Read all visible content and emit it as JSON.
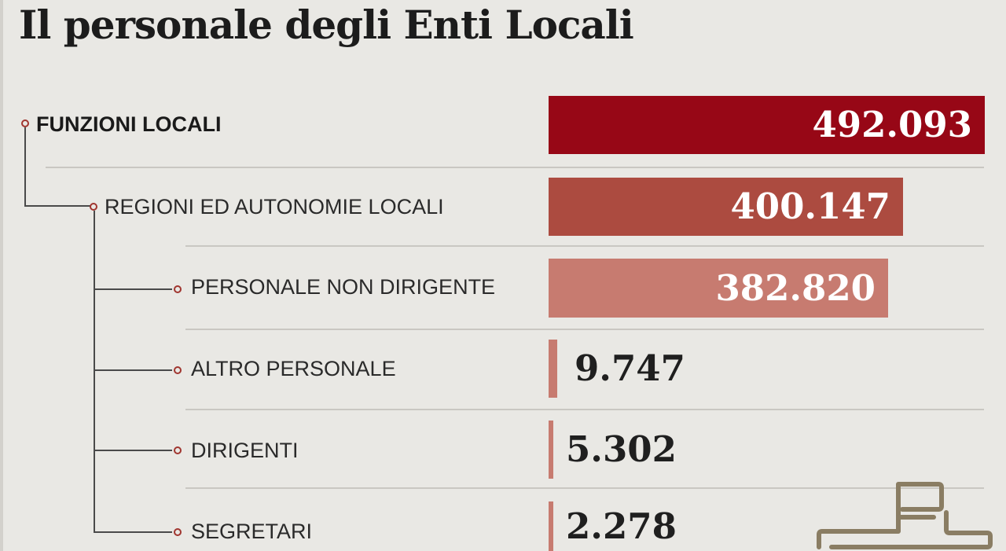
{
  "title": "Il personale degli Enti Locali",
  "colors": {
    "background": "#e9e8e4",
    "level1": "#970716",
    "level2": "#ac4b40",
    "level3": "#c77b70",
    "logo": "#8a7d63"
  },
  "rows": [
    {
      "label": "FUNZIONI LOCALI",
      "value_text": "492.093"
    },
    {
      "label": "REGIONI ED AUTONOMIE LOCALI",
      "value_text": "400.147"
    },
    {
      "label": "PERSONALE NON DIRIGENTE",
      "value_text": "382.820"
    },
    {
      "label": "ALTRO PERSONALE",
      "value_text": "9.747"
    },
    {
      "label": "DIRIGENTI",
      "value_text": "5.302"
    },
    {
      "label": "SEGRETARI",
      "value_text": "2.278"
    }
  ],
  "chart_data": {
    "type": "bar",
    "orientation": "horizontal",
    "title": "Il personale degli Enti Locali",
    "categories": [
      "FUNZIONI LOCALI",
      "REGIONI ED AUTONOMIE LOCALI",
      "PERSONALE NON DIRIGENTE",
      "ALTRO PERSONALE",
      "DIRIGENTI",
      "SEGRETARI"
    ],
    "values": [
      492093,
      400147,
      382820,
      9747,
      5302,
      2278
    ],
    "hierarchy": {
      "FUNZIONI LOCALI": [
        "REGIONI ED AUTONOMIE LOCALI"
      ],
      "REGIONI ED AUTONOMIE LOCALI": [
        "PERSONALE NON DIRIGENTE",
        "ALTRO PERSONALE",
        "DIRIGENTI",
        "SEGRETARI"
      ]
    },
    "grid": false,
    "legend": "none"
  }
}
